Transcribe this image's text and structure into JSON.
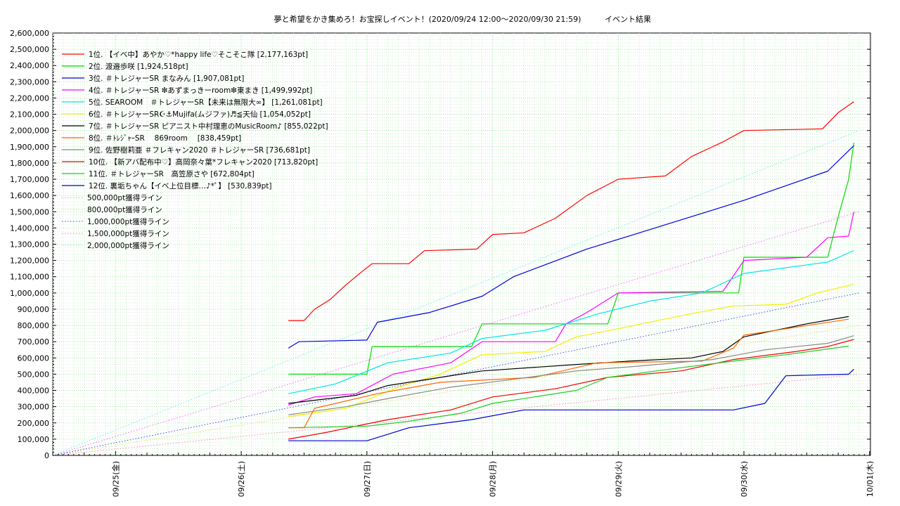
{
  "chart_data": {
    "type": "line",
    "title": "夢と希望をかき集めろ！お宝探しイベント！(2020/09/24 12:00〜2020/09/30 21:59)",
    "title_suffix": "イベント結果",
    "xlabel": "",
    "ylabel": "",
    "x_tick_labels": [
      "09/25(金)",
      "09/26(土)",
      "09/27(日)",
      "09/28(月)",
      "09/29(火)",
      "09/30(水)",
      "10/01(木)"
    ],
    "xlim": [
      "2020-09-24 12:00",
      "2020-10-01 00:10"
    ],
    "ylim": [
      0,
      2600000
    ],
    "y_tick_labels": [
      "0",
      "100,000",
      "200,000",
      "300,000",
      "400,000",
      "500,000",
      "600,000",
      "700,000",
      "800,000",
      "900,000",
      "1,000,000",
      "1,100,000",
      "1,200,000",
      "1,300,000",
      "1,400,000",
      "1,500,000",
      "1,600,000",
      "1,700,000",
      "1,800,000",
      "1,900,000",
      "2,000,000",
      "2,100,000",
      "2,200,000",
      "2,300,000",
      "2,400,000",
      "2,500,000",
      "2,600,000"
    ],
    "grid": true,
    "legend_position": "top-left",
    "series": [
      {
        "name": "1位. 【イベ中】あやか♡*happy life♡そこそこ隊 [2,177,163pt]",
        "color": "#ff0000",
        "points": [
          [
            "2020-09-26 09:00",
            830000
          ],
          [
            "2020-09-26 12:00",
            830000
          ],
          [
            "2020-09-26 14:00",
            900000
          ],
          [
            "2020-09-26 17:00",
            960000
          ],
          [
            "2020-09-26 20:00",
            1050000
          ],
          [
            "2020-09-26 23:00",
            1130000
          ],
          [
            "2020-09-27 01:00",
            1180000
          ],
          [
            "2020-09-27 08:00",
            1180000
          ],
          [
            "2020-09-27 11:00",
            1260000
          ],
          [
            "2020-09-27 21:00",
            1270000
          ],
          [
            "2020-09-28 00:00",
            1360000
          ],
          [
            "2020-09-28 06:00",
            1370000
          ],
          [
            "2020-09-28 12:00",
            1460000
          ],
          [
            "2020-09-28 18:00",
            1600000
          ],
          [
            "2020-09-29 00:00",
            1700000
          ],
          [
            "2020-09-29 09:00",
            1720000
          ],
          [
            "2020-09-29 14:00",
            1840000
          ],
          [
            "2020-09-29 20:00",
            1930000
          ],
          [
            "2020-09-30 00:00",
            2000000
          ],
          [
            "2020-09-30 15:00",
            2010000
          ],
          [
            "2020-09-30 18:00",
            2110000
          ],
          [
            "2020-09-30 21:00",
            2177163
          ]
        ]
      },
      {
        "name": "2位. 渡邉歩咲 [1,924,518pt]",
        "color": "#00dd00",
        "points": [
          [
            "2020-09-26 09:00",
            500000
          ],
          [
            "2020-09-27 00:00",
            500000
          ],
          [
            "2020-09-27 01:00",
            670000
          ],
          [
            "2020-09-27 20:00",
            670000
          ],
          [
            "2020-09-27 22:00",
            810000
          ],
          [
            "2020-09-28 22:00",
            810000
          ],
          [
            "2020-09-29 00:00",
            1000000
          ],
          [
            "2020-09-29 23:00",
            1000000
          ],
          [
            "2020-09-30 00:00",
            1220000
          ],
          [
            "2020-09-30 16:00",
            1220000
          ],
          [
            "2020-09-30 18:00",
            1470000
          ],
          [
            "2020-09-30 20:00",
            1700000
          ],
          [
            "2020-09-30 21:00",
            1924518
          ]
        ]
      },
      {
        "name": "3位. ＃トレジャーSR まなみん [1,907,081pt]",
        "color": "#0000dd",
        "points": [
          [
            "2020-09-26 09:00",
            660000
          ],
          [
            "2020-09-26 11:00",
            700000
          ],
          [
            "2020-09-27 00:00",
            710000
          ],
          [
            "2020-09-27 02:00",
            820000
          ],
          [
            "2020-09-27 12:00",
            880000
          ],
          [
            "2020-09-27 22:00",
            980000
          ],
          [
            "2020-09-28 04:00",
            1100000
          ],
          [
            "2020-09-28 18:00",
            1270000
          ],
          [
            "2020-09-29 00:00",
            1330000
          ],
          [
            "2020-09-29 12:00",
            1450000
          ],
          [
            "2020-09-30 00:00",
            1570000
          ],
          [
            "2020-09-30 08:00",
            1660000
          ],
          [
            "2020-09-30 16:00",
            1750000
          ],
          [
            "2020-09-30 21:00",
            1907081
          ]
        ]
      },
      {
        "name": "4位. ＃トレジャーSR ❇あずまっきーroom❇東まき [1,499,992pt]",
        "color": "#ff00ff",
        "points": [
          [
            "2020-09-26 09:00",
            310000
          ],
          [
            "2020-09-26 14:00",
            360000
          ],
          [
            "2020-09-26 22:00",
            380000
          ],
          [
            "2020-09-27 05:00",
            500000
          ],
          [
            "2020-09-27 16:00",
            570000
          ],
          [
            "2020-09-27 22:00",
            700000
          ],
          [
            "2020-09-28 12:00",
            700000
          ],
          [
            "2020-09-28 14:00",
            810000
          ],
          [
            "2020-09-28 18:00",
            880000
          ],
          [
            "2020-09-29 00:00",
            1000000
          ],
          [
            "2020-09-29 20:00",
            1010000
          ],
          [
            "2020-09-30 00:00",
            1200000
          ],
          [
            "2020-09-30 12:00",
            1220000
          ],
          [
            "2020-09-30 16:00",
            1340000
          ],
          [
            "2020-09-30 20:00",
            1350000
          ],
          [
            "2020-09-30 21:00",
            1499992
          ]
        ]
      },
      {
        "name": "5位. SEAROOM　＃トレジャーSR【未来は無限大∞】 [1,261,081pt]",
        "color": "#00e5e5",
        "points": [
          [
            "2020-09-26 09:00",
            380000
          ],
          [
            "2020-09-26 18:00",
            440000
          ],
          [
            "2020-09-27 04:00",
            570000
          ],
          [
            "2020-09-27 16:00",
            630000
          ],
          [
            "2020-09-27 22:00",
            720000
          ],
          [
            "2020-09-28 10:00",
            770000
          ],
          [
            "2020-09-28 20:00",
            870000
          ],
          [
            "2020-09-29 06:00",
            950000
          ],
          [
            "2020-09-29 16:00",
            1000000
          ],
          [
            "2020-09-30 00:00",
            1120000
          ],
          [
            "2020-09-30 16:00",
            1190000
          ],
          [
            "2020-09-30 21:00",
            1261081
          ]
        ]
      },
      {
        "name": "6位. ＃トレジャーSR☪⚓Mujifa(ムジファ)♬≦天仙 [1,054,052pt]",
        "color": "#f0f000",
        "points": [
          [
            "2020-09-26 09:00",
            240000
          ],
          [
            "2020-09-26 20:00",
            290000
          ],
          [
            "2020-09-27 06:00",
            420000
          ],
          [
            "2020-09-27 14:00",
            500000
          ],
          [
            "2020-09-27 22:00",
            620000
          ],
          [
            "2020-09-28 10:00",
            640000
          ],
          [
            "2020-09-28 16:00",
            730000
          ],
          [
            "2020-09-29 00:00",
            780000
          ],
          [
            "2020-09-29 12:00",
            860000
          ],
          [
            "2020-09-29 22:00",
            920000
          ],
          [
            "2020-09-30 08:00",
            930000
          ],
          [
            "2020-09-30 14:00",
            1000000
          ],
          [
            "2020-09-30 21:00",
            1054052
          ]
        ]
      },
      {
        "name": "7位. ＃トレジャーSR ピアニスト中村理恵のMusicRoom♪ [855,022pt]",
        "color": "#000000",
        "points": [
          [
            "2020-09-26 09:00",
            320000
          ],
          [
            "2020-09-26 22:00",
            370000
          ],
          [
            "2020-09-27 04:00",
            430000
          ],
          [
            "2020-09-27 22:00",
            520000
          ],
          [
            "2020-09-28 16:00",
            560000
          ],
          [
            "2020-09-29 02:00",
            580000
          ],
          [
            "2020-09-29 14:00",
            600000
          ],
          [
            "2020-09-29 20:00",
            640000
          ],
          [
            "2020-09-30 00:00",
            730000
          ],
          [
            "2020-09-30 12:00",
            810000
          ],
          [
            "2020-09-30 20:00",
            855022
          ]
        ]
      },
      {
        "name": "8位. ＃ﾄﾚｼﾞｬｰSR　 869room　 [838,459pt]",
        "color": "#ff6600",
        "points": [
          [
            "2020-09-26 09:00",
            170000
          ],
          [
            "2020-09-26 12:00",
            170000
          ],
          [
            "2020-09-26 14:00",
            290000
          ],
          [
            "2020-09-27 02:00",
            380000
          ],
          [
            "2020-09-27 14:00",
            450000
          ],
          [
            "2020-09-28 08:00",
            480000
          ],
          [
            "2020-09-28 20:00",
            570000
          ],
          [
            "2020-09-29 16:00",
            580000
          ],
          [
            "2020-09-29 22:00",
            660000
          ],
          [
            "2020-09-30 00:00",
            740000
          ],
          [
            "2020-09-30 20:00",
            838459
          ]
        ]
      },
      {
        "name": "9位. 佐野樹莉亜 ＃フレキャン2020 ＃トレジャーSR [736,681pt]",
        "color": "#888888",
        "points": [
          [
            "2020-09-26 09:00",
            250000
          ],
          [
            "2020-09-26 20:00",
            300000
          ],
          [
            "2020-09-27 04:00",
            350000
          ],
          [
            "2020-09-27 16:00",
            420000
          ],
          [
            "2020-09-28 02:00",
            460000
          ],
          [
            "2020-09-28 16:00",
            520000
          ],
          [
            "2020-09-29 04:00",
            550000
          ],
          [
            "2020-09-29 18:00",
            590000
          ],
          [
            "2020-09-30 04:00",
            650000
          ],
          [
            "2020-09-30 16:00",
            690000
          ],
          [
            "2020-09-30 21:00",
            736681
          ]
        ]
      },
      {
        "name": "10位. 【新アバ配布中♡】高岡奈々葉*フレキャン2020 [713,820pt]",
        "color": "#ee0000",
        "points": [
          [
            "2020-09-26 09:00",
            100000
          ],
          [
            "2020-09-26 16:00",
            140000
          ],
          [
            "2020-09-27 04:00",
            220000
          ],
          [
            "2020-09-27 16:00",
            280000
          ],
          [
            "2020-09-28 00:00",
            360000
          ],
          [
            "2020-09-28 12:00",
            410000
          ],
          [
            "2020-09-28 22:00",
            480000
          ],
          [
            "2020-09-29 12:00",
            520000
          ],
          [
            "2020-09-29 22:00",
            590000
          ],
          [
            "2020-09-30 10:00",
            640000
          ],
          [
            "2020-09-30 16:00",
            670000
          ],
          [
            "2020-09-30 21:00",
            713820
          ]
        ]
      },
      {
        "name": "11位. ＃トレジャーSR　高笠原さや [672,804pt]",
        "color": "#22cc22",
        "points": [
          [
            "2020-09-26 09:00",
            170000
          ],
          [
            "2020-09-27 00:00",
            180000
          ],
          [
            "2020-09-27 08:00",
            210000
          ],
          [
            "2020-09-27 18:00",
            260000
          ],
          [
            "2020-09-28 00:00",
            320000
          ],
          [
            "2020-09-28 16:00",
            400000
          ],
          [
            "2020-09-28 22:00",
            480000
          ],
          [
            "2020-09-29 12:00",
            540000
          ],
          [
            "2020-09-29 22:00",
            580000
          ],
          [
            "2020-09-30 08:00",
            620000
          ],
          [
            "2020-09-30 20:00",
            672804
          ]
        ]
      },
      {
        "name": "12位. 裏垢ちゃん【イベ上位目標…♪*ﾟ】 [530,839pt]",
        "color": "#0000cc",
        "points": [
          [
            "2020-09-26 09:00",
            90000
          ],
          [
            "2020-09-27 00:00",
            90000
          ],
          [
            "2020-09-27 08:00",
            170000
          ],
          [
            "2020-09-27 20:00",
            220000
          ],
          [
            "2020-09-28 06:00",
            280000
          ],
          [
            "2020-09-29 22:00",
            280000
          ],
          [
            "2020-09-30 04:00",
            320000
          ],
          [
            "2020-09-30 08:00",
            490000
          ],
          [
            "2020-09-30 20:00",
            500000
          ],
          [
            "2020-09-30 21:00",
            530839
          ]
        ]
      }
    ],
    "reference_lines": [
      {
        "name": "500,000pt獲得ライン",
        "value": 500000,
        "color": "#ff88bb"
      },
      {
        "name": "800,000pt獲得ライン",
        "value": 800000,
        "color": "#dddd66"
      },
      {
        "name": "1,000,000pt獲得ライン",
        "value": 1000000,
        "color": "#4444ee"
      },
      {
        "name": "1,500,000pt獲得ライン",
        "value": 1500000,
        "color": "#ff66ff"
      },
      {
        "name": "2,000,000pt獲得ライン",
        "value": 2000000,
        "color": "#66e8e8"
      }
    ]
  }
}
